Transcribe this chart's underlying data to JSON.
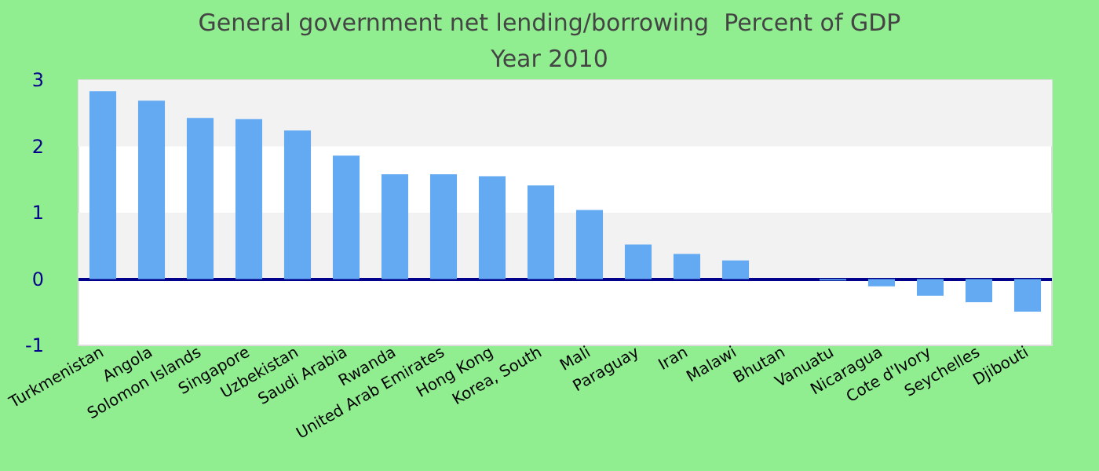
{
  "chart_data": {
    "type": "bar",
    "title": "General government net lending/borrowing  Percent of GDP",
    "subtitle": "Year 2010",
    "categories": [
      "Turkmenistan",
      "Angola",
      "Solomon Islands",
      "Singapore",
      "Uzbekistan",
      "Saudi Arabia",
      "Rwanda",
      "United Arab Emirates",
      "Hong Kong",
      "Korea, South",
      "Mali",
      "Paraguay",
      "Iran",
      "Malawi",
      "Bhutan",
      "Vanuatu",
      "Nicaragua",
      "Cote d'Ivory",
      "Seychelles",
      "Djibouti"
    ],
    "values": [
      2.83,
      2.69,
      2.43,
      2.41,
      2.24,
      1.86,
      1.58,
      1.58,
      1.55,
      1.41,
      1.04,
      0.52,
      0.38,
      0.28,
      0,
      -0.02,
      -0.11,
      -0.25,
      -0.35,
      -0.49
    ],
    "color": "#63aaf2",
    "ylim": [
      -1,
      3
    ],
    "yticks": [
      -1,
      0,
      1,
      2,
      3
    ],
    "bands": [
      {
        "axis": "y",
        "from": 2,
        "to": 3,
        "color": "#f2f2f2"
      },
      {
        "axis": "y",
        "from": 0,
        "to": 1,
        "color": "#f2f2f2"
      }
    ],
    "ref_lines": [
      {
        "axis": "y",
        "value": 0,
        "color": "#00008b"
      }
    ]
  }
}
